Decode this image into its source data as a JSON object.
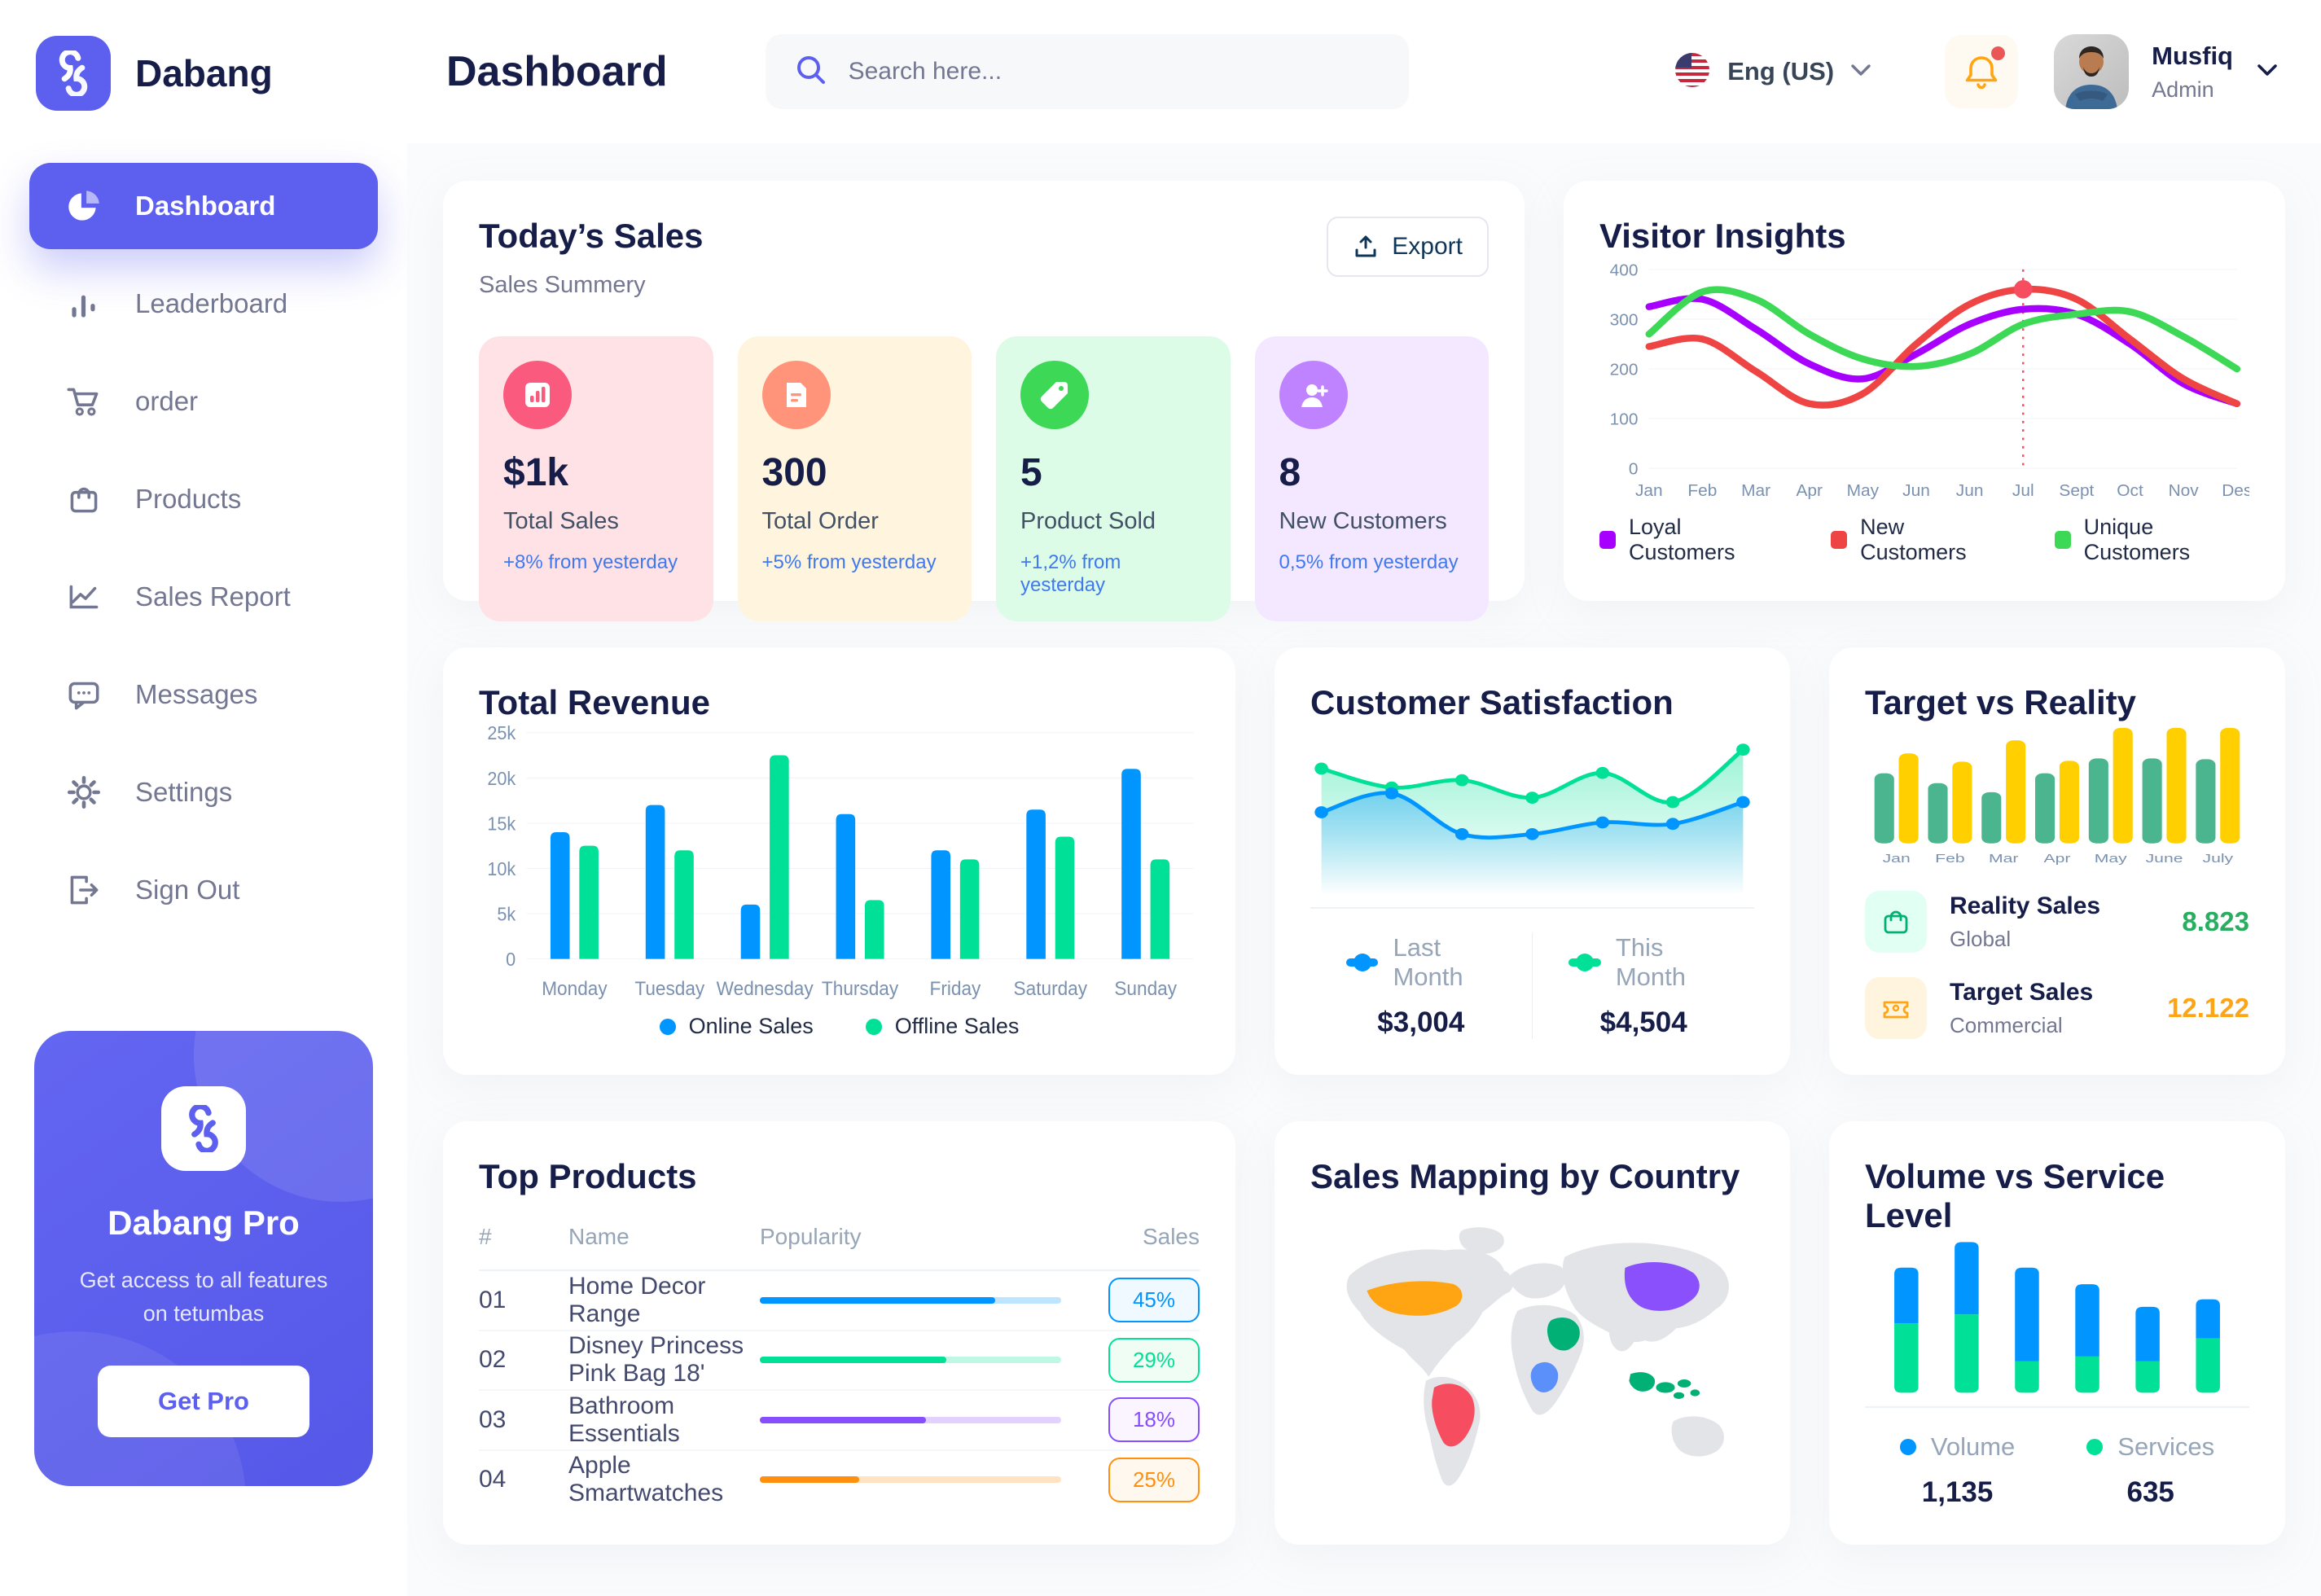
{
  "app": {
    "brand": "Dabang",
    "accent_color": "#5D5FEF"
  },
  "header": {
    "page_title": "Dashboard",
    "search_placeholder": "Search here...",
    "language_label": "Eng (US)",
    "user": {
      "name": "Musfiq",
      "role": "Admin"
    }
  },
  "sidebar": {
    "items": [
      {
        "label": "Dashboard",
        "icon": "pie-chart",
        "active": true
      },
      {
        "label": "Leaderboard",
        "icon": "bar-chart",
        "active": false
      },
      {
        "label": "order",
        "icon": "cart",
        "active": false
      },
      {
        "label": "Products",
        "icon": "bag",
        "active": false
      },
      {
        "label": "Sales Report",
        "icon": "line-chart",
        "active": false
      },
      {
        "label": "Messages",
        "icon": "message",
        "active": false
      },
      {
        "label": "Settings",
        "icon": "gear",
        "active": false
      },
      {
        "label": "Sign Out",
        "icon": "sign-out",
        "active": false
      }
    ],
    "promo": {
      "title": "Dabang Pro",
      "subtitle": "Get access to all features on tetumbas",
      "button_label": "Get Pro"
    }
  },
  "todays_sales": {
    "title": "Today’s Sales",
    "subtitle": "Sales Summery",
    "export_label": "Export",
    "cards": [
      {
        "value": "$1k",
        "label": "Total Sales",
        "delta": "+8% from yesterday",
        "bg": "#FFE2E5",
        "icon_bg": "#FA5A7D",
        "icon": "chart-doc"
      },
      {
        "value": "300",
        "label": "Total Order",
        "delta": "+5% from yesterday",
        "bg": "#FFF4DE",
        "icon_bg": "#FF947A",
        "icon": "order-doc"
      },
      {
        "value": "5",
        "label": "Product Sold",
        "delta": "+1,2% from yesterday",
        "bg": "#DCFCE7",
        "icon_bg": "#3CD856",
        "icon": "tag"
      },
      {
        "value": "8",
        "label": "New Customers",
        "delta": "0,5% from yesterday",
        "bg": "#F3E8FF",
        "icon_bg": "#BF83FF",
        "icon": "person-plus"
      }
    ]
  },
  "visitor_insights": {
    "title": "Visitor Insights",
    "type": "line",
    "categories": [
      "Jan",
      "Feb",
      "Mar",
      "Apr",
      "May",
      "Jun",
      "Jun",
      "Jul",
      "Sept",
      "Oct",
      "Nov",
      "Des"
    ],
    "yticks": [
      0,
      100,
      200,
      300,
      400
    ],
    "ylim": [
      0,
      400
    ],
    "series": [
      {
        "name": "Loyal Customers",
        "color": "#A700FF",
        "values": [
          325,
          340,
          280,
          210,
          180,
          230,
          290,
          320,
          310,
          250,
          170,
          130
        ]
      },
      {
        "name": "New Customers",
        "color": "#EF4444",
        "values": [
          245,
          260,
          195,
          130,
          150,
          250,
          330,
          360,
          340,
          260,
          180,
          130
        ]
      },
      {
        "name": "Unique Customers",
        "color": "#3CD856",
        "values": [
          270,
          355,
          340,
          270,
          220,
          205,
          230,
          290,
          310,
          315,
          265,
          200
        ]
      }
    ],
    "marker": {
      "series": "New Customers",
      "index": 7,
      "value": 360,
      "line_color": "#F64E60"
    }
  },
  "total_revenue": {
    "title": "Total Revenue",
    "type": "bar",
    "categories": [
      "Monday",
      "Tuesday",
      "Wednesday",
      "Thursday",
      "Friday",
      "Saturday",
      "Sunday"
    ],
    "yticks_labels": [
      "0",
      "5k",
      "10k",
      "15k",
      "20k",
      "25k"
    ],
    "ylim": [
      0,
      25
    ],
    "series": [
      {
        "name": "Online Sales",
        "color": "#0095FF",
        "values": [
          14,
          17,
          6,
          16,
          12,
          16.5,
          21
        ]
      },
      {
        "name": "Offline Sales",
        "color": "#00E096",
        "values": [
          12.5,
          12,
          22.5,
          6.5,
          11,
          13.5,
          11
        ]
      }
    ]
  },
  "customer_satisfaction": {
    "title": "Customer Satisfaction",
    "type": "area",
    "series": [
      {
        "name": "Last Month",
        "color": "#0095FF",
        "total": "$3,004",
        "values": [
          45,
          58,
          30,
          30,
          38,
          37,
          52
        ]
      },
      {
        "name": "This Month",
        "color": "#00E096",
        "total": "$4,504",
        "values": [
          75,
          62,
          67,
          55,
          72,
          52,
          88
        ]
      }
    ],
    "ylim": [
      0,
      100
    ]
  },
  "target_reality": {
    "title": "Target vs Reality",
    "type": "bar",
    "categories": [
      "Jan",
      "Feb",
      "Mar",
      "Apr",
      "May",
      "June",
      "July"
    ],
    "ylim": [
      0,
      14
    ],
    "series": [
      {
        "name": "Reality Sales",
        "color": "#4AB58E",
        "values": [
          8.5,
          7.3,
          6.2,
          8.5,
          10.3,
          10.3,
          10.2
        ]
      },
      {
        "name": "Target Sales",
        "color": "#FFCF00",
        "values": [
          10.9,
          9.9,
          12.5,
          10,
          14,
          14,
          14
        ]
      }
    ],
    "legend": [
      {
        "name": "Reality Sales",
        "sub": "Global",
        "value": "8.823",
        "value_color": "#27AE60",
        "tile_bg": "#E2FFF3",
        "icon": "bag-small",
        "icon_color": "#00B074"
      },
      {
        "name": "Target Sales",
        "sub": "Commercial",
        "value": "12.122",
        "value_color": "#FFA412",
        "tile_bg": "#FFF4DE",
        "icon": "ticket",
        "icon_color": "#FFA412"
      }
    ]
  },
  "top_products": {
    "title": "Top Products",
    "columns": [
      "#",
      "Name",
      "Popularity",
      "Sales"
    ],
    "rows": [
      {
        "num": "01",
        "name": "Home Decor Range",
        "popularity": 78,
        "sales": "45%",
        "color": "#0095FF",
        "badge_bg": "#F0F9FF"
      },
      {
        "num": "02",
        "name": "Disney Princess Pink Bag 18'",
        "popularity": 62,
        "sales": "29%",
        "color": "#00E096",
        "badge_bg": "#F0FDF4"
      },
      {
        "num": "03",
        "name": "Bathroom Essentials",
        "popularity": 55,
        "sales": "18%",
        "color": "#884DFF",
        "badge_bg": "#FBF5FF"
      },
      {
        "num": "04",
        "name": "Apple Smartwatches",
        "popularity": 33,
        "sales": "25%",
        "color": "#FF8F0D",
        "badge_bg": "#FFF8EF"
      }
    ]
  },
  "sales_map": {
    "title": "Sales Mapping by Country",
    "base_color": "#E3E4E8",
    "countries": [
      {
        "key": "usa",
        "name": "United States",
        "color": "#FFA412"
      },
      {
        "key": "brazil",
        "name": "Brazil",
        "color": "#F64E60"
      },
      {
        "key": "china",
        "name": "China",
        "color": "#8950FC"
      },
      {
        "key": "saudi",
        "name": "Saudi Arabia",
        "color": "#00B074"
      },
      {
        "key": "congo",
        "name": "DR Congo",
        "color": "#5B8FF9"
      },
      {
        "key": "indonesia",
        "name": "Indonesia",
        "color": "#00B074"
      }
    ]
  },
  "volume_service": {
    "title": "Volume vs Service Level",
    "type": "stacked-bar",
    "series": [
      {
        "name": "Volume",
        "color": "#0095FF",
        "total": "1,135",
        "values": [
          37,
          48,
          62,
          48,
          36,
          26
        ]
      },
      {
        "name": "Services",
        "color": "#00E096",
        "total": "635",
        "values": [
          46,
          52,
          21,
          24,
          21,
          36
        ]
      }
    ],
    "ylim": [
      0,
      100
    ]
  }
}
